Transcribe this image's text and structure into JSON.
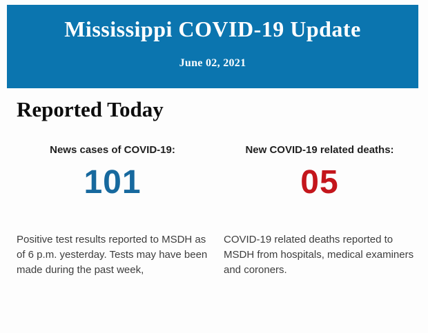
{
  "banner": {
    "title": "Mississippi COVID-19 Update",
    "date": "June 02, 2021",
    "bg_color": "#0b75af",
    "text_color": "#ffffff"
  },
  "main": {
    "heading": "Reported Today",
    "stats": [
      {
        "label": "News cases of COVID-19:",
        "value": "101",
        "value_color": "#17699e",
        "description": "Positive test results reported to MSDH as of 6 p.m. yesterday. Tests may have been made during the past week,"
      },
      {
        "label": "New COVID-19 related deaths:",
        "value": "05",
        "value_color": "#c4161c",
        "description": "COVID-19 related deaths reported to MSDH from hospitals, medical examiners and coroners."
      }
    ]
  }
}
